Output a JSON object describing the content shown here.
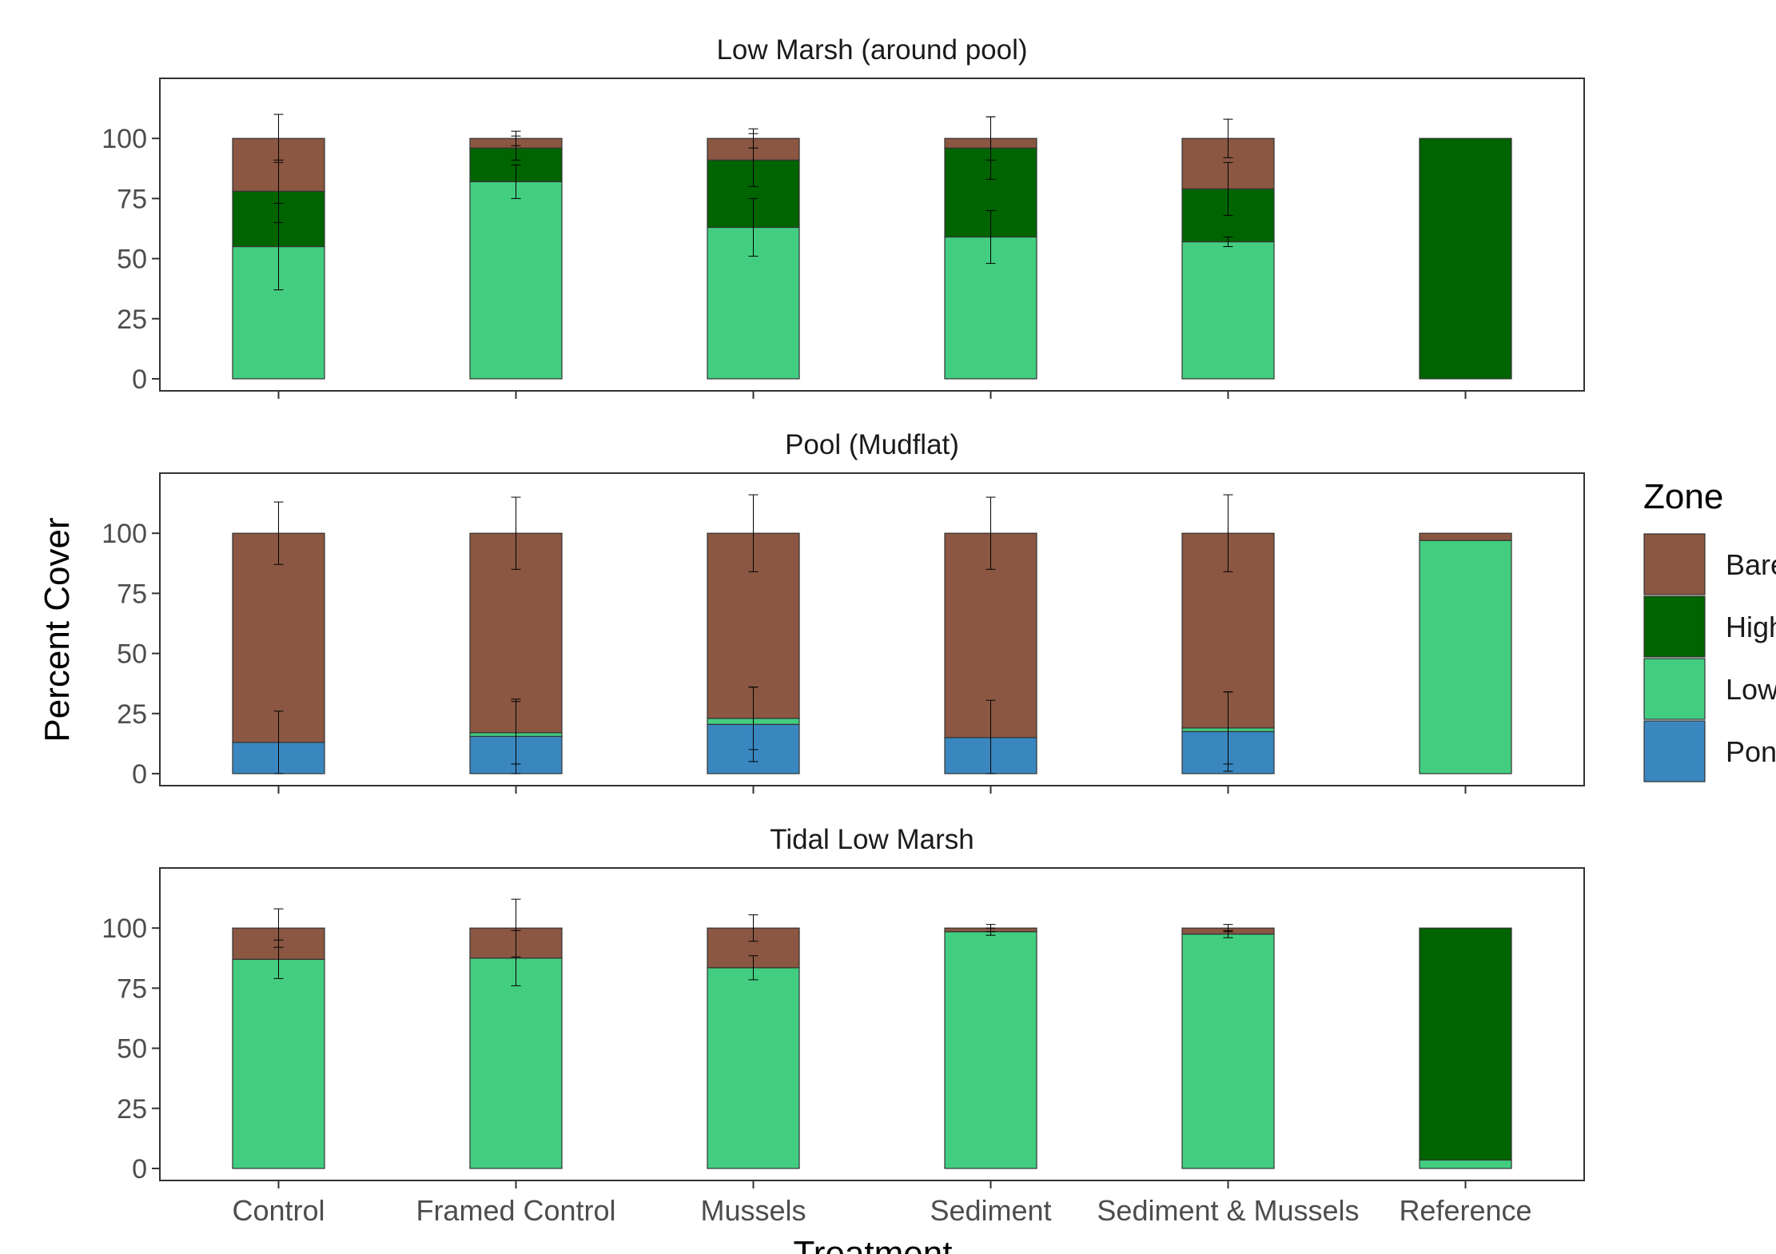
{
  "chart_data": {
    "type": "bar",
    "stacked": true,
    "facet_layout": "vertical",
    "categories": [
      "Control",
      "Framed Control",
      "Mussels",
      "Sediment",
      "Sediment & Mussels",
      "Reference"
    ],
    "xlabel": "Treatment",
    "ylabel": "Percent Cover",
    "ylim": [
      -5,
      125
    ],
    "yticks": [
      0,
      25,
      50,
      75,
      100
    ],
    "grid": false,
    "legend": {
      "title": "Zone",
      "placement": "right",
      "entries": [
        {
          "label": "Bare",
          "color": "#8B5742"
        },
        {
          "label": "High",
          "color": "#006400"
        },
        {
          "label": "Low",
          "color": "#43CD80"
        },
        {
          "label": "Pond",
          "color": "#3A87C0"
        }
      ]
    },
    "stack_order_bottom_to_top": [
      "Pond",
      "Low",
      "High",
      "Bare"
    ],
    "panels": [
      {
        "title": "Low Marsh (around pool)",
        "series": [
          {
            "name": "Pond",
            "values": [
              0,
              0,
              0,
              0,
              0,
              0
            ]
          },
          {
            "name": "Low",
            "values": [
              55,
              82,
              63,
              59,
              57,
              0
            ]
          },
          {
            "name": "High",
            "values": [
              23,
              14,
              28,
              37,
              22,
              100
            ]
          },
          {
            "name": "Bare",
            "values": [
              22,
              4,
              9,
              4,
              21,
              0
            ]
          }
        ],
        "error_bars": [
          {
            "name": "Low",
            "err": [
              18,
              7,
              12,
              11,
              2,
              null
            ]
          },
          {
            "name": "High",
            "err": [
              13,
              5,
              11,
              13,
              11,
              null
            ]
          },
          {
            "name": "Bare",
            "err": [
              10,
              3,
              4,
              9,
              8,
              null
            ]
          }
        ]
      },
      {
        "title": "Pool (Mudflat)",
        "series": [
          {
            "name": "Pond",
            "values": [
              13,
              15.5,
              20.5,
              15,
              17.5,
              0
            ]
          },
          {
            "name": "Low",
            "values": [
              0,
              1.5,
              2.5,
              0,
              1.5,
              97
            ]
          },
          {
            "name": "High",
            "values": [
              0,
              0,
              0,
              0,
              0,
              0
            ]
          },
          {
            "name": "Bare",
            "values": [
              87,
              83,
              77,
              85,
              81,
              3
            ]
          }
        ],
        "error_bars": [
          {
            "name": "Pond",
            "err": [
              13,
              15.5,
              15.5,
              15.5,
              16.5,
              null
            ]
          },
          {
            "name": "Low",
            "err": [
              null,
              13,
              13,
              null,
              15,
              null
            ]
          },
          {
            "name": "Bare",
            "err": [
              13,
              15,
              16,
              15,
              16,
              null
            ]
          }
        ]
      },
      {
        "title": "Tidal Low Marsh",
        "series": [
          {
            "name": "Pond",
            "values": [
              0,
              0,
              0,
              0,
              0,
              0
            ]
          },
          {
            "name": "Low",
            "values": [
              87,
              87.5,
              83.5,
              98.5,
              97.5,
              3.5
            ]
          },
          {
            "name": "High",
            "values": [
              0,
              0,
              0,
              0,
              0,
              96.5
            ]
          },
          {
            "name": "Bare",
            "values": [
              13,
              12.5,
              16.5,
              1.5,
              2.5,
              0
            ]
          }
        ],
        "error_bars": [
          {
            "name": "Low",
            "err": [
              8,
              11.5,
              5,
              1.5,
              1.5,
              null
            ]
          },
          {
            "name": "Bare",
            "err": [
              8,
              12,
              5.5,
              1.5,
              1.5,
              null
            ]
          }
        ]
      }
    ]
  }
}
